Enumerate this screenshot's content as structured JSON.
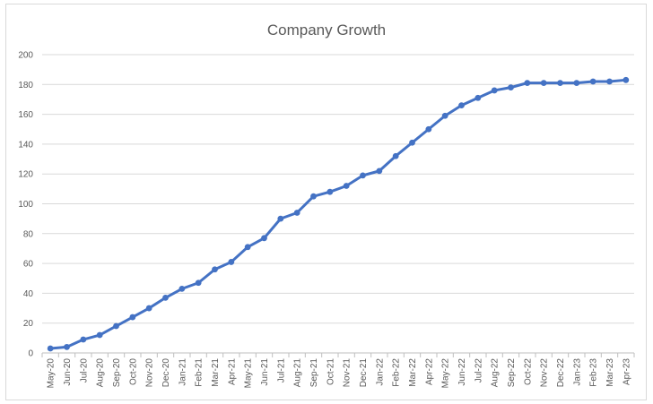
{
  "chart_data": {
    "type": "line",
    "title": "Company Growth",
    "xlabel": "",
    "ylabel": "",
    "categories": [
      "May-20",
      "Jun-20",
      "Jul-20",
      "Aug-20",
      "Sep-20",
      "Oct-20",
      "Nov-20",
      "Dec-20",
      "Jan-21",
      "Feb-21",
      "Mar-21",
      "Apr-21",
      "May-21",
      "Jun-21",
      "Jul-21",
      "Aug-21",
      "Sep-21",
      "Oct-21",
      "Nov-21",
      "Dec-21",
      "Jan-22",
      "Feb-22",
      "Mar-22",
      "Apr-22",
      "May-22",
      "Jun-22",
      "Jul-22",
      "Aug-22",
      "Sep-22",
      "Oct-22",
      "Nov-22",
      "Dec-22",
      "Jan-23",
      "Feb-23",
      "Mar-23",
      "Apr-23"
    ],
    "series": [
      {
        "name": "",
        "color": "#4472c4",
        "values": [
          3,
          4,
          9,
          12,
          18,
          24,
          30,
          37,
          43,
          47,
          56,
          61,
          71,
          77,
          90,
          94,
          105,
          108,
          112,
          119,
          122,
          132,
          141,
          150,
          159,
          166,
          171,
          176,
          178,
          181,
          181,
          181,
          181,
          182,
          182,
          183
        ]
      }
    ],
    "ylim": [
      0,
      200
    ],
    "yticks": [
      0,
      20,
      40,
      60,
      80,
      100,
      120,
      140,
      160,
      180,
      200
    ],
    "grid": true,
    "legend": "none",
    "markers": true
  }
}
